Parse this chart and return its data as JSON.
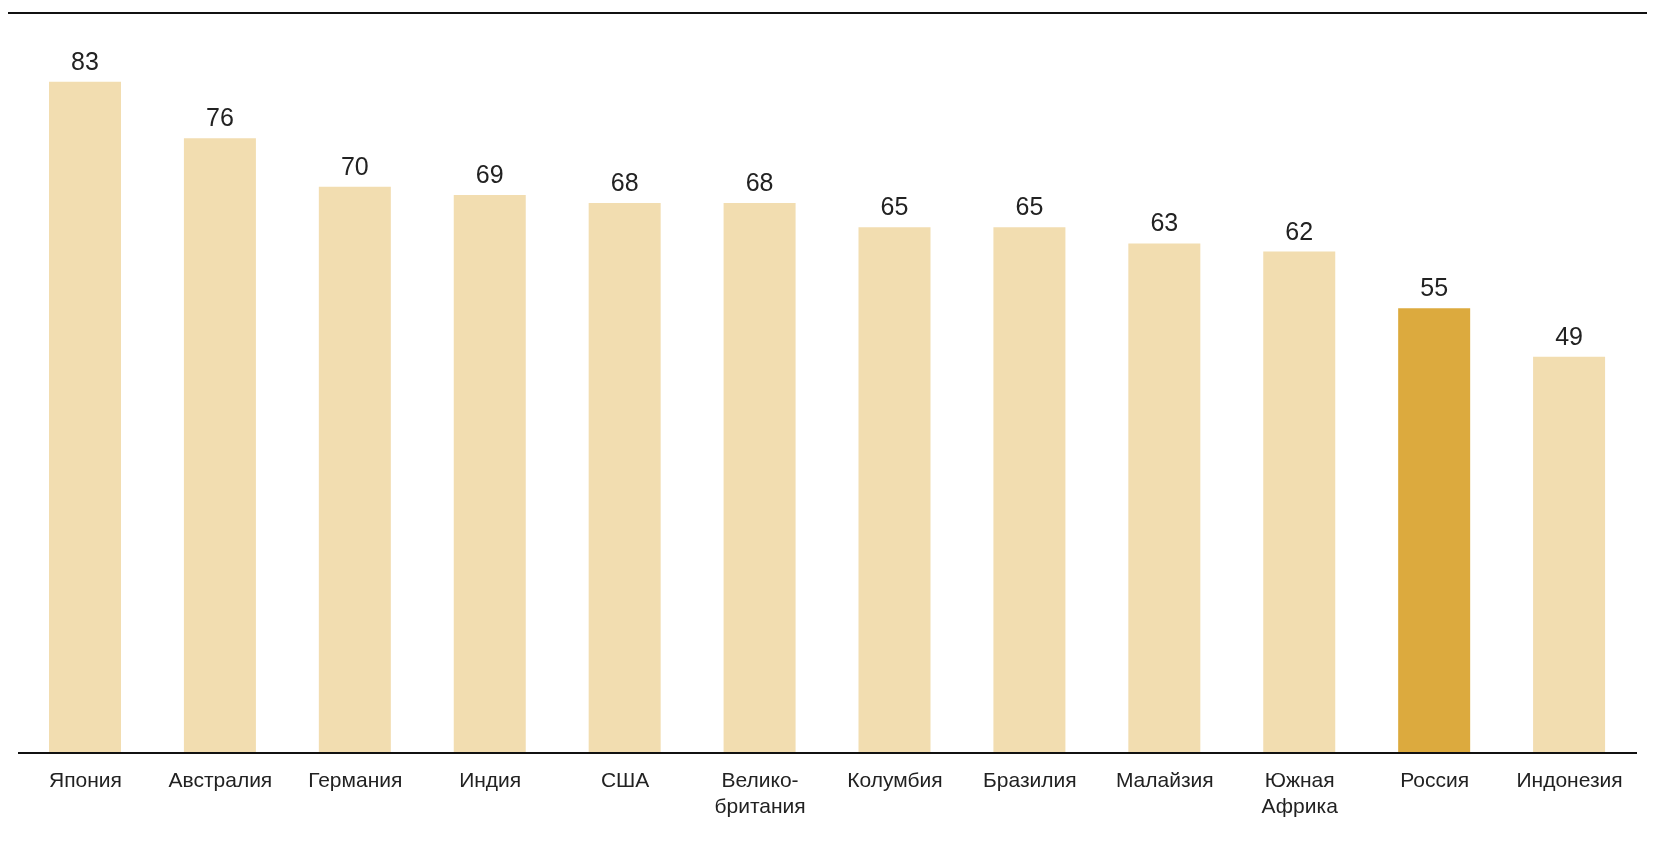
{
  "chart_data": {
    "type": "bar",
    "categories": [
      "Япония",
      "Австралия",
      "Германия",
      "Индия",
      "США",
      "Велико-британия",
      "Колумбия",
      "Бразилия",
      "Малайзия",
      "Южная Африка",
      "Россия",
      "Индонезия"
    ],
    "values": [
      83,
      76,
      70,
      69,
      68,
      68,
      65,
      65,
      63,
      62,
      55,
      49
    ],
    "colors": [
      "#f2ddb0",
      "#f2ddb0",
      "#f2ddb0",
      "#f2ddb0",
      "#f2ddb0",
      "#f2ddb0",
      "#f2ddb0",
      "#f2ddb0",
      "#f2ddb0",
      "#f2ddb0",
      "#dcaa3e",
      "#f2ddb0"
    ],
    "data_labels": true
  }
}
